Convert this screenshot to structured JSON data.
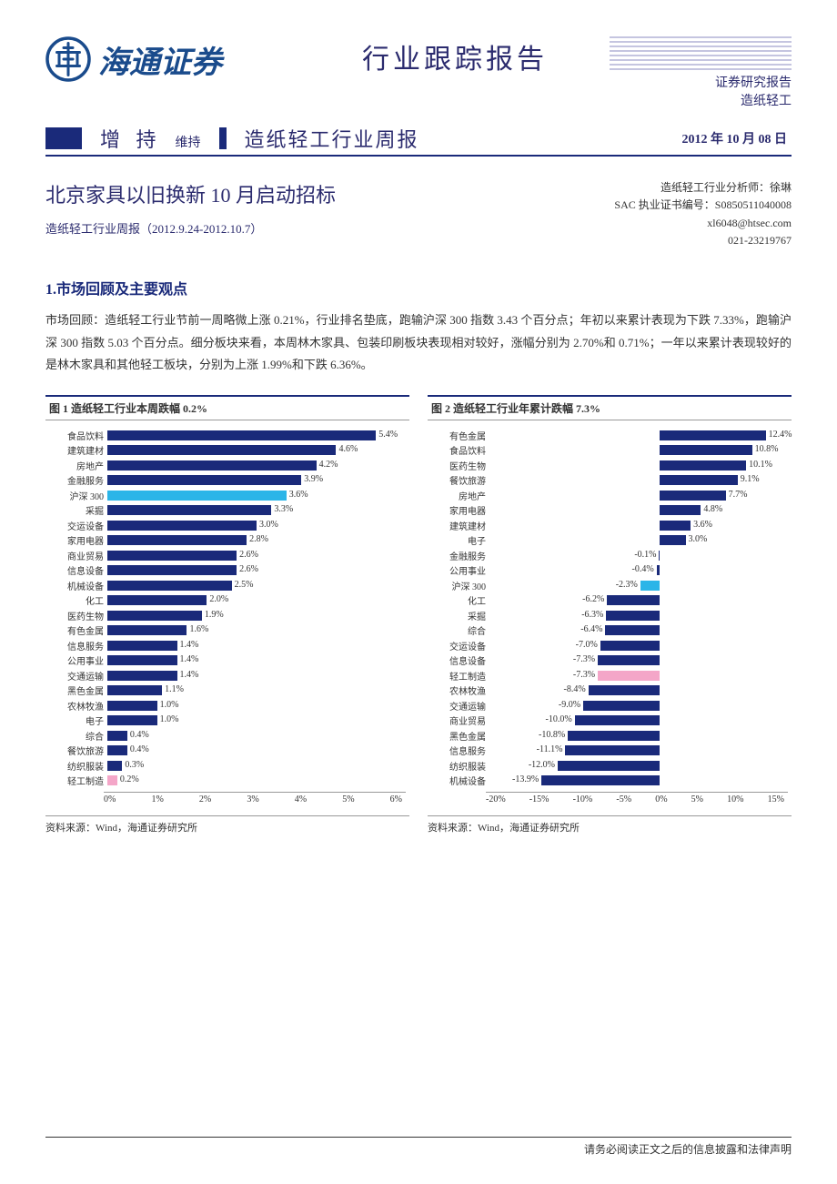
{
  "header": {
    "company_name": "海通证券",
    "report_type": "行业跟踪报告",
    "research_label": "证券研究报告",
    "sector_label": "造纸轻工"
  },
  "stripe": {
    "rating": "增 持",
    "rating_status": "维持",
    "report_name": "造纸轻工行业周报",
    "date": "2012 年 10 月 08 日"
  },
  "title": {
    "main": "北京家具以旧换新 10 月启动招标",
    "sub": "造纸轻工行业周报（2012.9.24-2012.10.7）"
  },
  "analyst": {
    "line1": "造纸轻工行业分析师：徐琳",
    "line2": "SAC 执业证书编号：S0850511040008",
    "line3": "xl6048@htsec.com",
    "line4": "021-23219767"
  },
  "section1": {
    "heading": "1.市场回顾及主要观点",
    "body": "市场回顾：造纸轻工行业节前一周略微上涨 0.21%，行业排名垫底，跑输沪深 300 指数 3.43 个百分点；年初以来累计表现为下跌 7.33%，跑输沪深 300 指数 5.03 个百分点。细分板块来看，本周林木家具、包装印刷板块表现相对较好，涨幅分别为 2.70%和 0.71%；一年以来累计表现较好的是林木家具和其他轻工板块，分别为上涨 1.99%和下跌 6.36%。"
  },
  "chart1": {
    "title": "图 1 造纸轻工行业本周跌幅 0.2%",
    "type": "horizontal-bar",
    "x_min": 0,
    "x_max": 6,
    "x_ticks": [
      "0%",
      "1%",
      "2%",
      "3%",
      "4%",
      "5%",
      "6%"
    ],
    "default_color": "#1a2a7a",
    "highlight_color_300": "#2bb5e8",
    "highlight_color_sector": "#f4a6c8",
    "label_fontsize": 10,
    "value_fontsize": 10,
    "bars": [
      {
        "label": "食品饮料",
        "value": 5.4,
        "color": "#1a2a7a"
      },
      {
        "label": "建筑建材",
        "value": 4.6,
        "color": "#1a2a7a"
      },
      {
        "label": "房地产",
        "value": 4.2,
        "color": "#1a2a7a"
      },
      {
        "label": "金融服务",
        "value": 3.9,
        "color": "#1a2a7a"
      },
      {
        "label": "沪深 300",
        "value": 3.6,
        "color": "#2bb5e8"
      },
      {
        "label": "采掘",
        "value": 3.3,
        "color": "#1a2a7a"
      },
      {
        "label": "交运设备",
        "value": 3.0,
        "color": "#1a2a7a"
      },
      {
        "label": "家用电器",
        "value": 2.8,
        "color": "#1a2a7a"
      },
      {
        "label": "商业贸易",
        "value": 2.6,
        "color": "#1a2a7a"
      },
      {
        "label": "信息设备",
        "value": 2.6,
        "color": "#1a2a7a"
      },
      {
        "label": "机械设备",
        "value": 2.5,
        "color": "#1a2a7a"
      },
      {
        "label": "化工",
        "value": 2.0,
        "color": "#1a2a7a"
      },
      {
        "label": "医药生物",
        "value": 1.9,
        "color": "#1a2a7a"
      },
      {
        "label": "有色金属",
        "value": 1.6,
        "color": "#1a2a7a"
      },
      {
        "label": "信息服务",
        "value": 1.4,
        "color": "#1a2a7a"
      },
      {
        "label": "公用事业",
        "value": 1.4,
        "color": "#1a2a7a"
      },
      {
        "label": "交通运输",
        "value": 1.4,
        "color": "#1a2a7a"
      },
      {
        "label": "黑色金属",
        "value": 1.1,
        "color": "#1a2a7a"
      },
      {
        "label": "农林牧渔",
        "value": 1.0,
        "color": "#1a2a7a"
      },
      {
        "label": "电子",
        "value": 1.0,
        "color": "#1a2a7a"
      },
      {
        "label": "综合",
        "value": 0.4,
        "color": "#1a2a7a"
      },
      {
        "label": "餐饮旅游",
        "value": 0.4,
        "color": "#1a2a7a"
      },
      {
        "label": "纺织服装",
        "value": 0.3,
        "color": "#1a2a7a"
      },
      {
        "label": "轻工制造",
        "value": 0.2,
        "color": "#f4a6c8"
      }
    ],
    "source": "资料来源：Wind，海通证券研究所"
  },
  "chart2": {
    "title": "图 2 造纸轻工行业年累计跌幅 7.3%",
    "type": "horizontal-bar",
    "x_min": -20,
    "x_max": 15,
    "x_ticks": [
      "-20%",
      "-15%",
      "-10%",
      "-5%",
      "0%",
      "5%",
      "10%",
      "15%"
    ],
    "default_color": "#1a2a7a",
    "highlight_color_300": "#2bb5e8",
    "highlight_color_sector": "#f4a6c8",
    "label_fontsize": 10,
    "value_fontsize": 10,
    "bars": [
      {
        "label": "有色金属",
        "value": 12.4,
        "color": "#1a2a7a"
      },
      {
        "label": "食品饮料",
        "value": 10.8,
        "color": "#1a2a7a"
      },
      {
        "label": "医药生物",
        "value": 10.1,
        "color": "#1a2a7a"
      },
      {
        "label": "餐饮旅游",
        "value": 9.1,
        "color": "#1a2a7a"
      },
      {
        "label": "房地产",
        "value": 7.7,
        "color": "#1a2a7a"
      },
      {
        "label": "家用电器",
        "value": 4.8,
        "color": "#1a2a7a"
      },
      {
        "label": "建筑建材",
        "value": 3.6,
        "color": "#1a2a7a"
      },
      {
        "label": "电子",
        "value": 3.0,
        "color": "#1a2a7a"
      },
      {
        "label": "金融服务",
        "value": -0.1,
        "color": "#1a2a7a"
      },
      {
        "label": "公用事业",
        "value": -0.4,
        "color": "#1a2a7a"
      },
      {
        "label": "沪深 300",
        "value": -2.3,
        "color": "#2bb5e8"
      },
      {
        "label": "化工",
        "value": -6.2,
        "color": "#1a2a7a"
      },
      {
        "label": "采掘",
        "value": -6.3,
        "color": "#1a2a7a"
      },
      {
        "label": "综合",
        "value": -6.4,
        "color": "#1a2a7a"
      },
      {
        "label": "交运设备",
        "value": -7.0,
        "color": "#1a2a7a"
      },
      {
        "label": "信息设备",
        "value": -7.3,
        "color": "#1a2a7a"
      },
      {
        "label": "轻工制造",
        "value": -7.3,
        "color": "#f4a6c8"
      },
      {
        "label": "农林牧渔",
        "value": -8.4,
        "color": "#1a2a7a"
      },
      {
        "label": "交通运输",
        "value": -9.0,
        "color": "#1a2a7a"
      },
      {
        "label": "商业贸易",
        "value": -10.0,
        "color": "#1a2a7a"
      },
      {
        "label": "黑色金属",
        "value": -10.8,
        "color": "#1a2a7a"
      },
      {
        "label": "信息服务",
        "value": -11.1,
        "color": "#1a2a7a"
      },
      {
        "label": "纺织服装",
        "value": -12.0,
        "color": "#1a2a7a"
      },
      {
        "label": "机械设备",
        "value": -13.9,
        "color": "#1a2a7a"
      }
    ],
    "source": "资料来源：Wind，海通证券研究所"
  },
  "footer": "请务必阅读正文之后的信息披露和法律声明"
}
